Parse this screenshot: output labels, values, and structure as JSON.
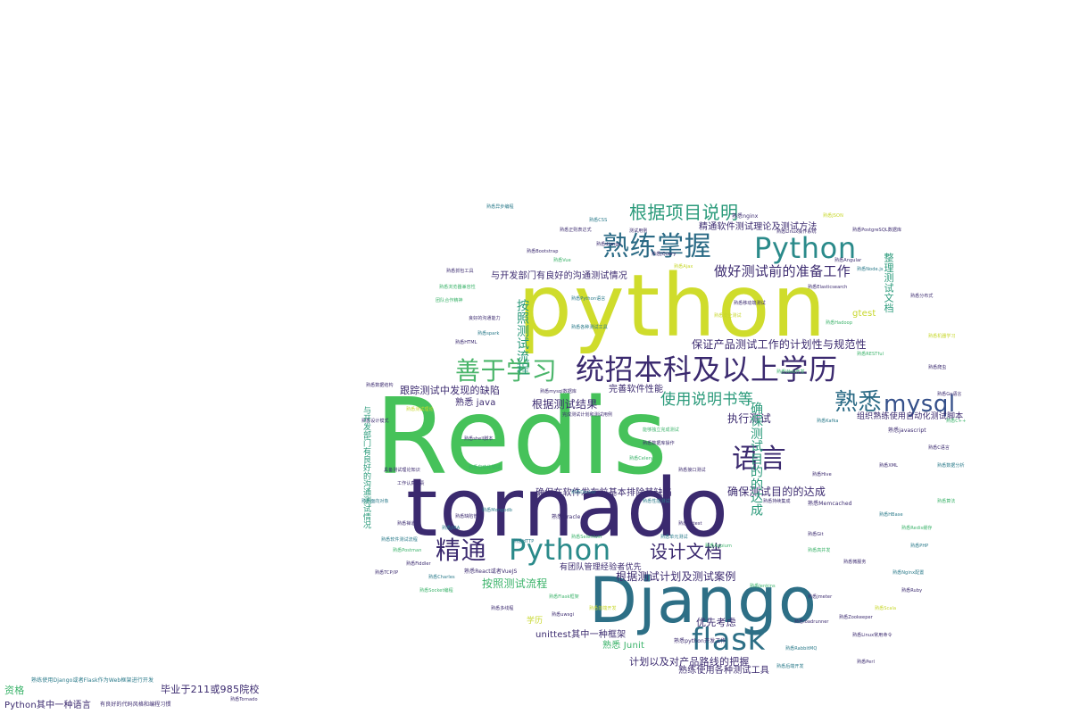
{
  "palette": {
    "purple": "#3b2a73",
    "indigo": "#35508a",
    "teal": "#2a7a8a",
    "green": "#3bb36a",
    "lime": "#c7d72a",
    "yellowgreen": "#9ccc3a"
  },
  "words": [
    {
      "text": "Redis",
      "color": "#46c25a"
    },
    {
      "text": "python",
      "color": "#cfdc2c"
    },
    {
      "text": "tornado",
      "color": "#3b2a6f"
    },
    {
      "text": "Django",
      "color": "#2d6f86"
    },
    {
      "text": "熟练掌握",
      "color": "#2a6a85"
    },
    {
      "text": "Python",
      "color": "#2a8a8a"
    },
    {
      "text": "根据项目说明",
      "color": "#2a9a7a"
    },
    {
      "text": "善于学习",
      "color": "#4ab56a"
    },
    {
      "text": "统招本科及以上学历",
      "color": "#3b2a6f"
    },
    {
      "text": "熟悉",
      "color": "#2a6a85"
    },
    {
      "text": "mysql",
      "color": "#35508a"
    },
    {
      "text": "语言",
      "color": "#3b2a6f"
    },
    {
      "text": "精通",
      "color": "#3b2a6f"
    },
    {
      "text": "Python",
      "color": "#2a8a8a"
    },
    {
      "text": "设计文档",
      "color": "#3b2a6f"
    },
    {
      "text": "flask",
      "color": "#2d6f86"
    },
    {
      "text": "使用说明书等",
      "color": "#2a9a7a"
    },
    {
      "text": "做好测试前的准备工作",
      "color": "#3b2a6f"
    },
    {
      "text": "保证产品测试工作的计划性与规范性",
      "color": "#3b2a6f"
    },
    {
      "text": "确保测试目的的达成",
      "color": "#3b2a6f"
    },
    {
      "text": "根据测试计划及测试案例",
      "color": "#3b2a6f"
    },
    {
      "text": "确保在软件发布前基本排除其缺陷",
      "color": "#3b2a6f"
    },
    {
      "text": "根据测试结果",
      "color": "#3b2a6f"
    },
    {
      "text": "执行测试",
      "color": "#3b2a6f"
    },
    {
      "text": "完善软件性能",
      "color": "#3b2a6f"
    },
    {
      "text": "按照测试流程",
      "color": "#3bb36a"
    },
    {
      "text": "计划以及对产品路线的把握",
      "color": "#3b2a6f"
    },
    {
      "text": "unittest其中一种框架",
      "color": "#3b2a6f"
    },
    {
      "text": "优先考虑",
      "color": "#3b2a6f"
    },
    {
      "text": "熟悉 java",
      "color": "#3b2a6f"
    },
    {
      "text": "熟练使用各种测试工具",
      "color": "#3b2a6f"
    },
    {
      "text": "跟踪测试中发现的缺陷",
      "color": "#3b2a6f"
    },
    {
      "text": "与开发部门有良好的沟通测试情况",
      "color": "#3b2a6f"
    },
    {
      "text": "精通软件测试理论及测试方法",
      "color": "#3b2a6f"
    },
    {
      "text": "整理测试文档",
      "color": "#2a9a7a"
    },
    {
      "text": "组织熟练使用自动化测试脚本",
      "color": "#3b2a6f"
    },
    {
      "text": "gtest",
      "color": "#c7d72a"
    },
    {
      "text": "熟悉 Junit",
      "color": "#3bb36a"
    },
    {
      "text": "有团队管理经验者优先",
      "color": "#3b2a6f"
    },
    {
      "text": "毕业于211或985院校",
      "color": "#3b2a6f"
    },
    {
      "text": "资格",
      "color": "#3bb36a"
    },
    {
      "text": "熟练使用Django或者Flask作为Web框架进行开发",
      "color": "#2a7a8a"
    },
    {
      "text": "Python其中一种语言",
      "color": "#3b2a6f"
    },
    {
      "text": "有良好的代码风格和编程习惯",
      "color": "#3b2a6f"
    },
    {
      "text": "熟悉nginx",
      "color": "#3b2a6f"
    },
    {
      "text": "熟悉django",
      "color": "#3b2a6f"
    },
    {
      "text": "熟悉javascript",
      "color": "#3b2a6f"
    },
    {
      "text": "熟悉Memcached",
      "color": "#3b2a6f"
    },
    {
      "text": "熟悉Oracle",
      "color": "#3b2a6f"
    },
    {
      "text": "熟悉Mongodb",
      "color": "#2a7a8a"
    },
    {
      "text": "熟悉HTTP",
      "color": "#2a7a8a"
    },
    {
      "text": "熟悉spark",
      "color": "#2a7a8a"
    },
    {
      "text": "熟悉React或者VueJS",
      "color": "#3b2a6f"
    },
    {
      "text": "熟悉python开发工作",
      "color": "#3b2a6f"
    },
    {
      "text": "熟悉mysql数据库",
      "color": "#3b2a6f"
    },
    {
      "text": "熟悉Linux操作系统",
      "color": "#3b2a6f"
    },
    {
      "text": "熟悉PostgreSQL数据库",
      "color": "#3b2a6f"
    },
    {
      "text": "熟悉各种测试工具",
      "color": "#2a7a8a"
    },
    {
      "text": "熟悉自动化测试",
      "color": "#3bb36a"
    },
    {
      "text": "完成测试计划和测试用例",
      "color": "#3b2a6f"
    },
    {
      "text": "熟悉测试理论",
      "color": "#c7d72a"
    },
    {
      "text": "熟悉Web开发",
      "color": "#3bb36a"
    },
    {
      "text": "测试用例",
      "color": "#3b2a6f"
    },
    {
      "text": "良好的沟通能力",
      "color": "#3b2a6f"
    },
    {
      "text": "团队合作精神",
      "color": "#3bb36a"
    },
    {
      "text": "熟悉Python语言",
      "color": "#2a7a8a"
    },
    {
      "text": "熟悉shell脚本",
      "color": "#3b2a6f"
    },
    {
      "text": "熟悉Tornado",
      "color": "#3b2a6f"
    },
    {
      "text": "熟悉Celery",
      "color": "#3bb36a"
    },
    {
      "text": "熟悉Docker",
      "color": "#2a7a8a"
    },
    {
      "text": "熟悉Git",
      "color": "#3b2a6f"
    },
    {
      "text": "熟悉Redis缓存",
      "color": "#3bb36a"
    },
    {
      "text": "熟悉RabbitMQ",
      "color": "#2a7a8a"
    },
    {
      "text": "熟悉前端开发",
      "color": "#c7d72a"
    },
    {
      "text": "学历",
      "color": "#c7d72a"
    },
    {
      "text": "熟悉Flask框架",
      "color": "#3bb36a"
    },
    {
      "text": "熟悉后端开发",
      "color": "#2a7a8a"
    },
    {
      "text": "具备测试理论知识",
      "color": "#3b2a6f"
    },
    {
      "text": "工作认真负责",
      "color": "#3b2a6f"
    },
    {
      "text": "熟悉软件测试流程",
      "color": "#2a7a8a"
    },
    {
      "text": "能够独立完成测试",
      "color": "#3bb36a"
    },
    {
      "text": "熟悉数据库操作",
      "color": "#3b2a6f"
    },
    {
      "text": "熟悉接口测试",
      "color": "#3b2a6f"
    },
    {
      "text": "熟悉性能测试",
      "color": "#2a7a8a"
    },
    {
      "text": "熟悉Selenium",
      "color": "#3bb36a"
    },
    {
      "text": "熟悉jmeter",
      "color": "#3b2a6f"
    },
    {
      "text": "熟悉loadrunner",
      "color": "#3b2a6f"
    },
    {
      "text": "熟悉Linux常用命令",
      "color": "#3b2a6f"
    },
    {
      "text": "熟悉Nginx配置",
      "color": "#2a7a8a"
    },
    {
      "text": "熟悉uwsgi",
      "color": "#3b2a6f"
    },
    {
      "text": "熟悉高并发",
      "color": "#3bb36a"
    },
    {
      "text": "熟悉分布式",
      "color": "#3b2a6f"
    },
    {
      "text": "熟悉机器学习",
      "color": "#c7d72a"
    },
    {
      "text": "熟悉爬虫",
      "color": "#3b2a6f"
    },
    {
      "text": "熟悉数据分析",
      "color": "#2a7a8a"
    },
    {
      "text": "熟悉算法",
      "color": "#3bb36a"
    },
    {
      "text": "熟悉数据结构",
      "color": "#3b2a6f"
    },
    {
      "text": "熟悉设计模式",
      "color": "#3b2a6f"
    },
    {
      "text": "熟悉面向对象",
      "color": "#2a7a8a"
    },
    {
      "text": "熟悉TCP/IP",
      "color": "#3b2a6f"
    },
    {
      "text": "熟悉Socket编程",
      "color": "#3bb36a"
    },
    {
      "text": "熟悉多线程",
      "color": "#3b2a6f"
    },
    {
      "text": "熟悉异步编程",
      "color": "#2a7a8a"
    },
    {
      "text": "熟悉正则表达式",
      "color": "#3b2a6f"
    },
    {
      "text": "熟悉JSON",
      "color": "#c7d72a"
    },
    {
      "text": "熟悉XML",
      "color": "#3b2a6f"
    },
    {
      "text": "熟悉RESTful",
      "color": "#3bb36a"
    },
    {
      "text": "熟悉微服务",
      "color": "#3b2a6f"
    },
    {
      "text": "熟悉Kafka",
      "color": "#2a7a8a"
    },
    {
      "text": "熟悉Elasticsearch",
      "color": "#3b2a6f"
    },
    {
      "text": "熟悉Hadoop",
      "color": "#3bb36a"
    },
    {
      "text": "熟悉Hive",
      "color": "#3b2a6f"
    },
    {
      "text": "熟悉HBase",
      "color": "#2a7a8a"
    },
    {
      "text": "熟悉Zookeeper",
      "color": "#3b2a6f"
    },
    {
      "text": "熟悉Jenkins",
      "color": "#3bb36a"
    },
    {
      "text": "熟悉持续集成",
      "color": "#3b2a6f"
    },
    {
      "text": "熟悉单元测试",
      "color": "#2a7a8a"
    },
    {
      "text": "熟悉pytest",
      "color": "#3b2a6f"
    },
    {
      "text": "熟悉Appium",
      "color": "#3bb36a"
    },
    {
      "text": "熟悉移动端测试",
      "color": "#3b2a6f"
    },
    {
      "text": "熟悉安全测试",
      "color": "#c7d72a"
    },
    {
      "text": "熟悉缺陷管理",
      "color": "#3b2a6f"
    },
    {
      "text": "熟悉JIRA",
      "color": "#2a7a8a"
    },
    {
      "text": "熟悉禅道",
      "color": "#3b2a6f"
    },
    {
      "text": "熟悉Postman",
      "color": "#3bb36a"
    },
    {
      "text": "熟悉Fiddler",
      "color": "#3b2a6f"
    },
    {
      "text": "熟悉Charles",
      "color": "#2a7a8a"
    },
    {
      "text": "熟悉抓包工具",
      "color": "#3b2a6f"
    },
    {
      "text": "熟悉浏览器兼容性",
      "color": "#3bb36a"
    },
    {
      "text": "熟悉HTML",
      "color": "#3b2a6f"
    },
    {
      "text": "熟悉CSS",
      "color": "#2a7a8a"
    },
    {
      "text": "熟悉jQuery",
      "color": "#3b2a6f"
    },
    {
      "text": "熟悉Ajax",
      "color": "#c7d72a"
    },
    {
      "text": "熟悉Bootstrap",
      "color": "#3b2a6f"
    },
    {
      "text": "熟悉Vue",
      "color": "#3bb36a"
    },
    {
      "text": "熟悉Angular",
      "color": "#3b2a6f"
    },
    {
      "text": "熟悉Node.js",
      "color": "#2a7a8a"
    },
    {
      "text": "熟悉Go语言",
      "color": "#3b2a6f"
    },
    {
      "text": "熟悉C++",
      "color": "#3bb36a"
    },
    {
      "text": "熟悉C语言",
      "color": "#3b2a6f"
    },
    {
      "text": "熟悉PHP",
      "color": "#2a7a8a"
    },
    {
      "text": "熟悉Ruby",
      "color": "#3b2a6f"
    },
    {
      "text": "熟悉Scala",
      "color": "#c7d72a"
    },
    {
      "text": "熟悉Perl",
      "color": "#3b2a6f"
    }
  ]
}
